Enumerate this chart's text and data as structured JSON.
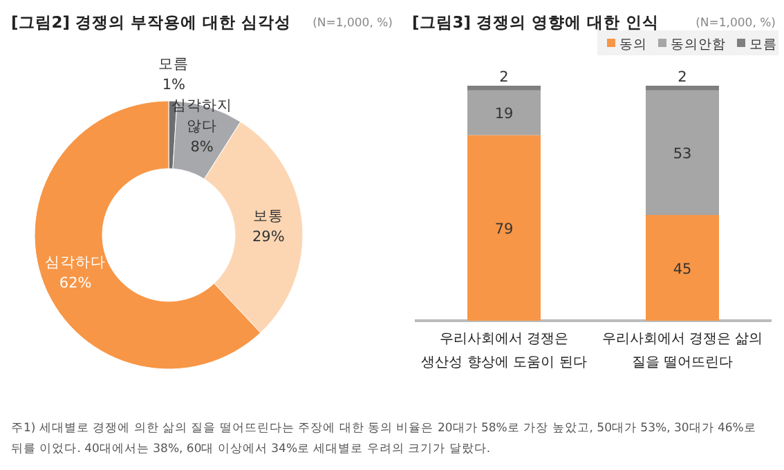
{
  "chart_data": [
    {
      "type": "donut",
      "title": "[그림2] 경쟁의 부작용에 대한 심각성",
      "annotations": [
        "(N=1,000, %)"
      ],
      "categories": [
        "모름",
        "심각하지 않다",
        "보통",
        "심각하다"
      ],
      "values": [
        1,
        8,
        29,
        62
      ],
      "value_labels": [
        "1%",
        "8%",
        "29%",
        "62%"
      ],
      "colors": [
        "#6d6e71",
        "#a6a8ab",
        "#fcd6b3",
        "#f79646"
      ]
    },
    {
      "type": "bar",
      "title": "[그림3] 경쟁의 영향에 대한 인식",
      "annotations": [
        "(N=1,000, %)",
        "주1) 세대별로 경쟁에 의한 삶의 질을 떨어뜨린다는 주장에 대한 동의 비율은 20대가 58%로 가장 높았고, 50대가 53%, 30대가 46%로 뒤를 이었다. 40대에서는 38%, 60대 이상에서 34%로 세대별로 우려의 크기가 달랐다."
      ],
      "categories": [
        "우리사회에서 경쟁은 생산성 향상에 도움이 된다",
        "우리사회에서 경쟁은 삶의 질을 떨어뜨린다"
      ],
      "stacked": true,
      "data_labels": true,
      "legend": "top right",
      "series": [
        {
          "name": "동의",
          "color": "#f79646",
          "values": [
            79,
            45
          ]
        },
        {
          "name": "동의안함",
          "color": "#a6a6a6",
          "values": [
            19,
            53
          ]
        },
        {
          "name": "모름",
          "color": "#7f7f7f",
          "values": [
            2,
            2
          ]
        }
      ]
    }
  ]
}
